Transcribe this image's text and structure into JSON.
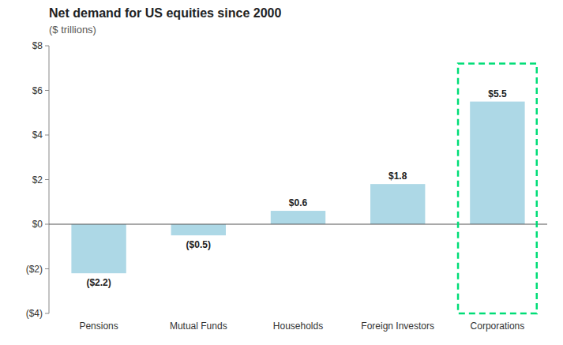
{
  "chart_data": {
    "type": "bar",
    "title": "Net demand for US equities since 2000",
    "subtitle": "($ trillions)",
    "categories": [
      "Pensions",
      "Mutual Funds",
      "Households",
      "Foreign Investors",
      "Corporations"
    ],
    "values": [
      -2.2,
      -0.5,
      0.6,
      1.8,
      5.5
    ],
    "value_labels": [
      "($2.2)",
      "($0.5)",
      "$0.6",
      "$1.8",
      "$5.5"
    ],
    "data_labels": true,
    "color": "#add8e6",
    "ylim": [
      -4,
      8
    ],
    "yticks": [
      {
        "value": -4,
        "label": "($4)"
      },
      {
        "value": -2,
        "label": "($2)"
      },
      {
        "value": 0,
        "label": "$0"
      },
      {
        "value": 2,
        "label": "$2"
      },
      {
        "value": 4,
        "label": "$4"
      },
      {
        "value": 6,
        "label": "$6"
      },
      {
        "value": 8,
        "label": "$8"
      }
    ],
    "grid": false,
    "annotations": [
      {
        "type": "box",
        "category": "Corporations",
        "y0": -4.0,
        "y1": 7.2,
        "color": "#00dd77",
        "line_style": "dashed"
      }
    ]
  }
}
